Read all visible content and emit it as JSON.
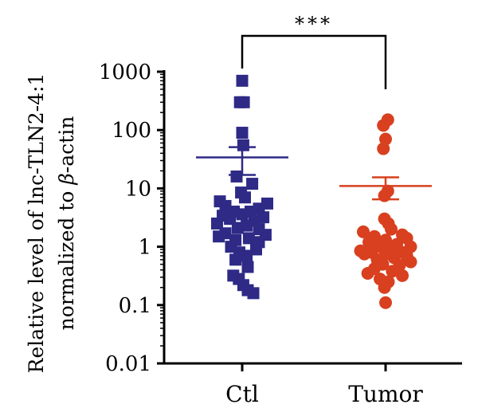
{
  "chart_data": {
    "type": "scatter",
    "ylabel_line1": "Relative level of lnc-TLN2-4:1",
    "ylabel_line2_prefix": "normalized to ",
    "ylabel_line2_beta": "β",
    "ylabel_line2_suffix": "-actin",
    "y_scale": "log",
    "ylim": [
      0.01,
      1000
    ],
    "yticks": [
      0.01,
      0.1,
      1,
      10,
      100,
      1000
    ],
    "ytick_labels": [
      "0.01",
      "0.1",
      "1",
      "10",
      "100",
      "1000"
    ],
    "categories": [
      "Ctl",
      "Tumor"
    ],
    "significance": "***",
    "series": [
      {
        "category": "Ctl",
        "marker": "square",
        "color": "#2e2a86",
        "mean": 34,
        "sem_low": 17,
        "sem_high": 51,
        "points": [
          {
            "y": 700,
            "o": 0.0
          },
          {
            "y": 300,
            "o": -0.04
          },
          {
            "y": 300,
            "o": 0.03
          },
          {
            "y": 90,
            "o": 0.0
          },
          {
            "y": 55,
            "o": 0.02
          },
          {
            "y": 16,
            "o": -0.1
          },
          {
            "y": 12,
            "o": 0.18
          },
          {
            "y": 8.5,
            "o": -0.02
          },
          {
            "y": 7.0,
            "o": 0.05
          },
          {
            "y": 6.0,
            "o": -0.4
          },
          {
            "y": 5.5,
            "o": 0.45
          },
          {
            "y": 5.0,
            "o": -0.3
          },
          {
            "y": 4.5,
            "o": 0.3
          },
          {
            "y": 4.0,
            "o": -0.15
          },
          {
            "y": 4.0,
            "o": 0.15
          },
          {
            "y": 3.6,
            "o": 0.0
          },
          {
            "y": 3.4,
            "o": -0.35
          },
          {
            "y": 3.2,
            "o": 0.38
          },
          {
            "y": 3.0,
            "o": -0.22
          },
          {
            "y": 2.8,
            "o": 0.22
          },
          {
            "y": 2.5,
            "o": -0.45
          },
          {
            "y": 2.3,
            "o": 0.08
          },
          {
            "y": 2.1,
            "o": -0.08
          },
          {
            "y": 2.0,
            "o": 0.3
          },
          {
            "y": 1.7,
            "o": -0.3
          },
          {
            "y": 1.6,
            "o": 0.42
          },
          {
            "y": 1.5,
            "o": -0.42
          },
          {
            "y": 1.4,
            "o": 0.12
          },
          {
            "y": 1.3,
            "o": -0.12
          },
          {
            "y": 1.2,
            "o": 0.3
          },
          {
            "y": 1.0,
            "o": -0.2
          },
          {
            "y": 0.9,
            "o": 0.25
          },
          {
            "y": 0.8,
            "o": -0.05
          },
          {
            "y": 0.7,
            "o": 0.08
          },
          {
            "y": 0.6,
            "o": -0.12
          },
          {
            "y": 0.45,
            "o": 0.1
          },
          {
            "y": 0.32,
            "o": -0.16
          },
          {
            "y": 0.28,
            "o": -0.06
          },
          {
            "y": 0.22,
            "o": 0.02
          },
          {
            "y": 0.18,
            "o": 0.1
          },
          {
            "y": 0.16,
            "o": 0.2
          }
        ]
      },
      {
        "category": "Tumor",
        "marker": "circle",
        "color": "#d8401f",
        "mean": 11,
        "sem_low": 6.5,
        "sem_high": 15.5,
        "points": [
          {
            "y": 150,
            "o": 0.04
          },
          {
            "y": 120,
            "o": -0.04
          },
          {
            "y": 70,
            "o": 0.0
          },
          {
            "y": 48,
            "o": -0.04
          },
          {
            "y": 9.0,
            "o": 0.04
          },
          {
            "y": 7.5,
            "o": -0.02
          },
          {
            "y": 3.0,
            "o": -0.02
          },
          {
            "y": 2.5,
            "o": 0.05
          },
          {
            "y": 2.0,
            "o": 0.1
          },
          {
            "y": 1.8,
            "o": -0.4
          },
          {
            "y": 1.6,
            "o": 0.3
          },
          {
            "y": 1.5,
            "o": -0.2
          },
          {
            "y": 1.4,
            "o": 0.38
          },
          {
            "y": 1.3,
            "o": 0.0
          },
          {
            "y": 1.2,
            "o": -0.3
          },
          {
            "y": 1.1,
            "o": 0.2
          },
          {
            "y": 1.0,
            "o": -0.1
          },
          {
            "y": 1.0,
            "o": 0.45
          },
          {
            "y": 0.9,
            "o": 0.1
          },
          {
            "y": 0.85,
            "o": -0.45
          },
          {
            "y": 0.8,
            "o": 0.3
          },
          {
            "y": 0.8,
            "o": -0.25
          },
          {
            "y": 0.75,
            "o": 0.0
          },
          {
            "y": 0.75,
            "o": -0.38
          },
          {
            "y": 0.7,
            "o": 0.38
          },
          {
            "y": 0.65,
            "o": 0.15
          },
          {
            "y": 0.6,
            "o": -0.15
          },
          {
            "y": 0.55,
            "o": 0.45
          },
          {
            "y": 0.5,
            "o": -0.05
          },
          {
            "y": 0.48,
            "o": 0.25
          },
          {
            "y": 0.42,
            "o": -0.2
          },
          {
            "y": 0.38,
            "o": 0.12
          },
          {
            "y": 0.35,
            "o": -0.32
          },
          {
            "y": 0.32,
            "o": 0.3
          },
          {
            "y": 0.28,
            "o": -0.1
          },
          {
            "y": 0.25,
            "o": 0.05
          },
          {
            "y": 0.2,
            "o": -0.02
          },
          {
            "y": 0.11,
            "o": 0.0
          }
        ]
      }
    ]
  }
}
